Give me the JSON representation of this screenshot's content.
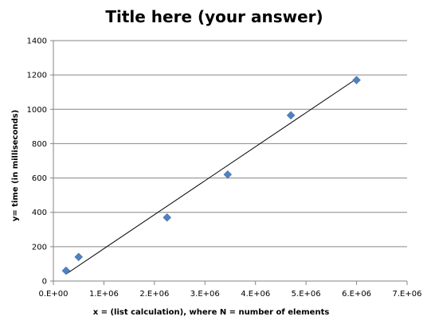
{
  "chart_data": {
    "type": "scatter",
    "title": "Title here (your answer)",
    "xlabel": "x = (list calculation),  where N = number of elements",
    "ylabel": "y= time (in milliseconds)",
    "xlim": [
      0,
      7000000
    ],
    "ylim": [
      0,
      1400
    ],
    "x_ticks": [
      0,
      1000000,
      2000000,
      3000000,
      4000000,
      5000000,
      6000000,
      7000000
    ],
    "x_tick_labels": [
      "0.E+00",
      "1.E+06",
      "2.E+06",
      "3.E+06",
      "4.E+06",
      "5.E+06",
      "6.E+06",
      "7.E+06"
    ],
    "y_ticks": [
      0,
      200,
      400,
      600,
      800,
      1000,
      1200,
      1400
    ],
    "y_tick_labels": [
      "0",
      "200",
      "400",
      "600",
      "800",
      "1000",
      "1200",
      "1400"
    ],
    "grid": "horizontal",
    "legend": "none",
    "series": [
      {
        "x": [
          250000,
          500000,
          2250000,
          3450000,
          4700000,
          6000000
        ],
        "y": [
          60,
          140,
          370,
          620,
          965,
          1170
        ],
        "marker": "diamond",
        "color": "#4F81BD"
      }
    ],
    "trendline": {
      "type": "linear",
      "x": [
        250000,
        6000000
      ],
      "y": [
        40,
        1178
      ],
      "color": "#000000"
    }
  }
}
